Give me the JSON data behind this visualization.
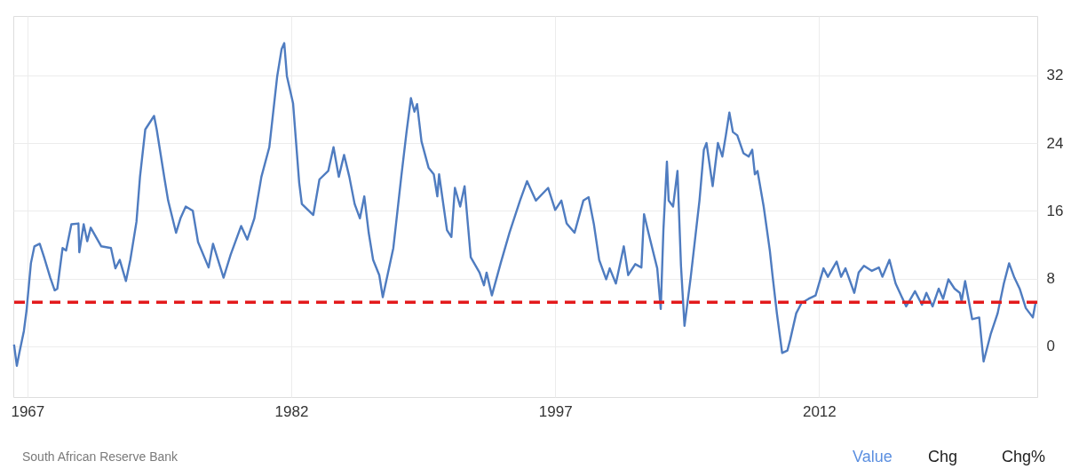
{
  "chart_data": {
    "type": "line",
    "x": [
      1966.24,
      1966.4,
      1966.55,
      1966.8,
      1966.95,
      1967.2,
      1967.4,
      1967.7,
      1967.95,
      1968.3,
      1968.55,
      1968.7,
      1969.0,
      1969.2,
      1969.5,
      1969.9,
      1969.95,
      1970.2,
      1970.4,
      1970.6,
      1971.2,
      1971.75,
      1972.0,
      1972.25,
      1972.6,
      1972.85,
      1973.2,
      1973.4,
      1973.7,
      1974.2,
      1974.35,
      1974.8,
      1975.0,
      1975.45,
      1975.7,
      1976.0,
      1976.4,
      1976.7,
      1977.3,
      1977.55,
      1978.15,
      1978.55,
      1979.15,
      1979.5,
      1979.9,
      1980.3,
      1980.75,
      1981.2,
      1981.45,
      1981.6,
      1981.75,
      1982.1,
      1982.45,
      1982.6,
      1983.25,
      1983.6,
      1984.1,
      1984.4,
      1984.7,
      1985.0,
      1985.3,
      1985.6,
      1985.9,
      1986.15,
      1986.4,
      1986.65,
      1987.0,
      1987.2,
      1987.8,
      1988.25,
      1988.55,
      1988.8,
      1989.0,
      1989.15,
      1989.4,
      1989.8,
      1990.1,
      1990.3,
      1990.4,
      1990.85,
      1991.1,
      1991.3,
      1991.6,
      1991.85,
      1992.2,
      1992.7,
      1992.95,
      1993.1,
      1993.4,
      1993.9,
      1994.4,
      1995.0,
      1995.4,
      1995.9,
      1996.6,
      1997.0,
      1997.35,
      1997.65,
      1998.1,
      1998.6,
      1998.9,
      1999.2,
      1999.5,
      1999.9,
      2000.1,
      2000.45,
      2000.9,
      2001.15,
      2001.55,
      2001.9,
      2002.05,
      2002.3,
      2002.8,
      2003.0,
      2003.15,
      2003.35,
      2003.45,
      2003.7,
      2003.95,
      2004.15,
      2004.35,
      2004.7,
      2005.2,
      2005.45,
      2005.6,
      2005.95,
      2006.25,
      2006.5,
      2006.7,
      2006.9,
      2007.1,
      2007.35,
      2007.7,
      2008.0,
      2008.2,
      2008.35,
      2008.5,
      2008.85,
      2009.2,
      2009.35,
      2009.6,
      2009.9,
      2010.2,
      2010.35,
      2010.7,
      2011.0,
      2011.4,
      2011.8,
      2012.25,
      2012.5,
      2013.0,
      2013.25,
      2013.5,
      2014.0,
      2014.25,
      2014.55,
      2015.0,
      2015.4,
      2015.6,
      2016.0,
      2016.35,
      2016.95,
      2017.45,
      2017.85,
      2018.1,
      2018.45,
      2018.8,
      2019.05,
      2019.35,
      2019.7,
      2020.0,
      2020.1,
      2020.3,
      2020.7,
      2021.1,
      2021.35,
      2021.75,
      2022.15,
      2022.5,
      2022.8,
      2023.1,
      2023.4,
      2023.75,
      2024.15,
      2024.3
    ],
    "series": [
      {
        "color": "#4f7cc0",
        "values": [
          0.2,
          -2.3,
          -0.7,
          1.8,
          4.2,
          9.8,
          11.8,
          12.1,
          10.5,
          8.1,
          6.6,
          6.8,
          11.6,
          11.3,
          14.4,
          14.5,
          11.1,
          14.4,
          12.4,
          14.0,
          11.8,
          11.6,
          9.2,
          10.2,
          7.7,
          10.2,
          14.7,
          20,
          25.6,
          27.2,
          25.6,
          19.7,
          17.2,
          13.4,
          15.1,
          16.5,
          16.0,
          12.3,
          9.3,
          12.1,
          8.1,
          10.8,
          14.2,
          12.6,
          15.1,
          20,
          23.5,
          31.9,
          35.1,
          35.8,
          31.9,
          28.7,
          19.3,
          16.8,
          15.5,
          19.7,
          20.7,
          23.5,
          20,
          22.6,
          20,
          16.8,
          15.1,
          17.7,
          13.4,
          10.2,
          8.4,
          5.8,
          11.6,
          20,
          25.3,
          29.3,
          27.7,
          28.6,
          24.2,
          21.1,
          20.3,
          17.7,
          20.3,
          13.7,
          12.9,
          18.7,
          16.5,
          18.9,
          10.5,
          8.7,
          7.2,
          8.7,
          6.0,
          9.8,
          13.4,
          17.2,
          19.5,
          17.2,
          18.7,
          16.1,
          17.2,
          14.5,
          13.4,
          17.2,
          17.6,
          14.4,
          10.2,
          7.9,
          9.2,
          7.4,
          11.8,
          8.4,
          9.7,
          9.3,
          15.6,
          13.4,
          9.2,
          4.4,
          13.7,
          21.8,
          17.2,
          16.5,
          20.7,
          9.5,
          2.4,
          8.1,
          17.2,
          23.2,
          24,
          18.9,
          24,
          22.4,
          24.9,
          27.6,
          25.3,
          24.9,
          22.8,
          22.4,
          23.2,
          20.3,
          20.7,
          16.5,
          11.3,
          8.4,
          3.9,
          -0.8,
          -0.5,
          0.7,
          3.9,
          5.1,
          5.6,
          6.0,
          9.2,
          8.2,
          10,
          8.2,
          9.2,
          6.3,
          8.7,
          9.5,
          8.9,
          9.3,
          8.2,
          10.2,
          7.4,
          4.7,
          6.5,
          4.9,
          6.3,
          4.7,
          6.8,
          5.6,
          7.9,
          6.8,
          6.3,
          5.3,
          7.7,
          3.2,
          3.4,
          -1.8,
          1.4,
          3.9,
          7.4,
          9.8,
          8.1,
          6.8,
          4.5,
          3.4,
          5.1
        ]
      }
    ],
    "xlim": [
      1966.2,
      2024.4
    ],
    "xticks": [
      1967,
      1982,
      1997,
      2012
    ],
    "ylim": [
      -6,
      39
    ],
    "yticks": [
      0,
      8,
      16,
      24,
      32
    ],
    "grid": true,
    "line_style": "solid",
    "marker": "none",
    "ref_lines": [
      {
        "axis": "y",
        "value": 5.2,
        "color": "#e31a1c",
        "line_style": "dashed"
      }
    ],
    "annotations": [
      "South African Reserve Bank",
      "Value",
      "Chg",
      "Chg%"
    ]
  }
}
